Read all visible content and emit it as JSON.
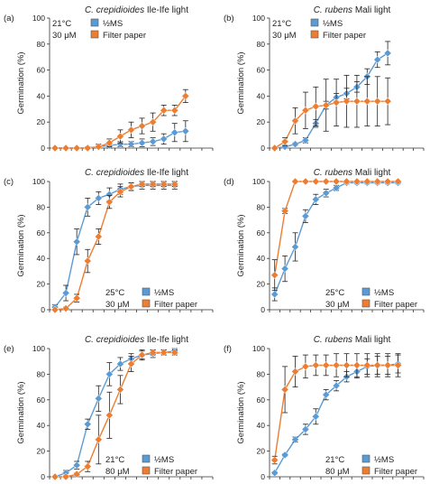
{
  "chart_data": [
    {
      "type": "line",
      "panel_label": "(a)",
      "title_species": "C. crepidioides",
      "title_rest": " Ile-Ife light",
      "ylabel": "Germination (%)",
      "ylim": [
        0,
        100
      ],
      "yticks": [
        0,
        20,
        40,
        60,
        80,
        100
      ],
      "condition_temp": "21°C",
      "condition_conc": "30 μM",
      "legend_position": "top-left",
      "n_points": 15,
      "series": [
        {
          "name": "½MS",
          "color": "#5b9bd5",
          "values": [
            0,
            0,
            0,
            0,
            1,
            2,
            3,
            3,
            4,
            5,
            7,
            12,
            13
          ],
          "err": [
            0,
            0,
            0,
            0,
            1,
            2,
            2,
            2,
            3,
            3,
            4,
            7,
            8
          ]
        },
        {
          "name": "Filter paper",
          "color": "#ed7d31",
          "values": [
            0,
            0,
            0,
            0,
            1,
            4,
            9,
            14,
            17,
            20,
            29,
            29,
            40
          ],
          "err": [
            0,
            0,
            0,
            1,
            2,
            3,
            5,
            6,
            6,
            7,
            4,
            4,
            5
          ]
        }
      ]
    },
    {
      "type": "line",
      "panel_label": "(b)",
      "title_species": "C. rubens",
      "title_rest": " Mali light",
      "ylabel": "Germination (%)",
      "ylim": [
        0,
        100
      ],
      "yticks": [
        0,
        20,
        40,
        60,
        80,
        100
      ],
      "condition_temp": "21°C",
      "condition_conc": "30 μM",
      "legend_position": "top-left",
      "n_points": 15,
      "series": [
        {
          "name": "½MS",
          "color": "#5b9bd5",
          "values": [
            0,
            1,
            3,
            6,
            19,
            33,
            39,
            42,
            47,
            55,
            68,
            73
          ],
          "err": [
            0,
            1,
            1,
            2,
            3,
            3,
            3,
            4,
            4,
            6,
            6,
            9
          ]
        },
        {
          "name": "Filter paper",
          "color": "#ed7d31",
          "values": [
            0,
            5,
            21,
            29,
            32,
            33,
            35,
            36,
            36,
            36,
            36,
            36
          ],
          "err": [
            0,
            3,
            10,
            14,
            15,
            20,
            18,
            20,
            20,
            19,
            19,
            18
          ]
        }
      ]
    },
    {
      "type": "line",
      "panel_label": "(c)",
      "title_species": "C. crepidioides",
      "title_rest": " Ile-Ife light",
      "ylabel": "Germination (%)",
      "ylim": [
        0,
        100
      ],
      "yticks": [
        0,
        20,
        40,
        60,
        80,
        100
      ],
      "condition_temp": "25°C",
      "condition_conc": "30 μM",
      "legend_position": "bottom-right",
      "n_points": 15,
      "series": [
        {
          "name": "½MS",
          "color": "#5b9bd5",
          "values": [
            2,
            13,
            53,
            80,
            87,
            90,
            94,
            96,
            97,
            97,
            97,
            97
          ],
          "err": [
            2,
            6,
            10,
            7,
            5,
            5,
            4,
            3,
            3,
            3,
            3,
            3
          ]
        },
        {
          "name": "Filter paper",
          "color": "#ed7d31",
          "values": [
            0,
            1,
            9,
            38,
            57,
            84,
            92,
            96,
            98,
            98,
            98,
            98
          ],
          "err": [
            0,
            1,
            3,
            9,
            6,
            5,
            4,
            3,
            2,
            2,
            2,
            2
          ]
        }
      ]
    },
    {
      "type": "line",
      "panel_label": "(d)",
      "title_species": "C. rubens",
      "title_rest": " Mali light",
      "ylabel": "Germination (%)",
      "ylim": [
        0,
        100
      ],
      "yticks": [
        0,
        20,
        40,
        60,
        80,
        100
      ],
      "condition_temp": "25°C",
      "condition_conc": "30 μM",
      "legend_position": "bottom-right",
      "n_points": 15,
      "series": [
        {
          "name": "½MS",
          "color": "#5b9bd5",
          "values": [
            12,
            32,
            49,
            73,
            86,
            91,
            95,
            99,
            99,
            99,
            99,
            99,
            99
          ],
          "err": [
            5,
            10,
            11,
            5,
            4,
            3,
            2,
            1,
            1,
            1,
            1,
            1,
            1
          ]
        },
        {
          "name": "Filter paper",
          "color": "#ed7d31",
          "values": [
            27,
            77,
            100,
            100,
            100,
            100,
            100,
            100,
            100,
            100,
            100,
            100,
            100
          ],
          "err": [
            12,
            2,
            0,
            0,
            0,
            0,
            0,
            0,
            0,
            0,
            0,
            0,
            0
          ]
        }
      ]
    },
    {
      "type": "line",
      "panel_label": "(e)",
      "title_species": "C. crepidioides",
      "title_rest": " Ile-Ife light",
      "ylabel": "Germination (%)",
      "ylim": [
        0,
        100
      ],
      "yticks": [
        0,
        20,
        40,
        60,
        80,
        100
      ],
      "condition_temp": "21°C",
      "condition_conc": "80 μM",
      "legend_position": "bottom-right",
      "n_points": 15,
      "series": [
        {
          "name": "½MS",
          "color": "#5b9bd5",
          "values": [
            0,
            3,
            9,
            41,
            61,
            80,
            88,
            92,
            95,
            96,
            97,
            98
          ],
          "err": [
            0,
            2,
            3,
            4,
            10,
            9,
            5,
            4,
            3,
            3,
            2,
            2
          ]
        },
        {
          "name": "Filter paper",
          "color": "#ed7d31",
          "values": [
            0,
            0,
            2,
            8,
            29,
            48,
            68,
            88,
            95,
            97,
            97,
            97
          ],
          "err": [
            0,
            0,
            1,
            4,
            19,
            18,
            11,
            6,
            4,
            2,
            2,
            2
          ]
        }
      ]
    },
    {
      "type": "line",
      "panel_label": "(f)",
      "title_species": "C. rubens",
      "title_rest": " Mali light",
      "ylabel": "Germination (%)",
      "ylim": [
        0,
        100
      ],
      "yticks": [
        0,
        20,
        40,
        60,
        80,
        100
      ],
      "condition_temp": "21°C",
      "condition_conc": "80 μM",
      "legend_position": "bottom-right",
      "n_points": 15,
      "series": [
        {
          "name": "½MS",
          "color": "#5b9bd5",
          "values": [
            3,
            17,
            29,
            37,
            47,
            64,
            71,
            78,
            82,
            86,
            87,
            87,
            88
          ],
          "err": [
            1,
            1,
            2,
            4,
            6,
            4,
            4,
            4,
            5,
            6,
            7,
            7,
            7
          ]
        },
        {
          "name": "Filter paper",
          "color": "#ed7d31",
          "values": [
            13,
            68,
            82,
            86,
            87,
            87,
            87,
            87,
            87,
            87,
            87,
            87,
            87
          ],
          "err": [
            3,
            18,
            12,
            9,
            8,
            8,
            9,
            9,
            9,
            9,
            9,
            9,
            9
          ]
        }
      ]
    }
  ]
}
